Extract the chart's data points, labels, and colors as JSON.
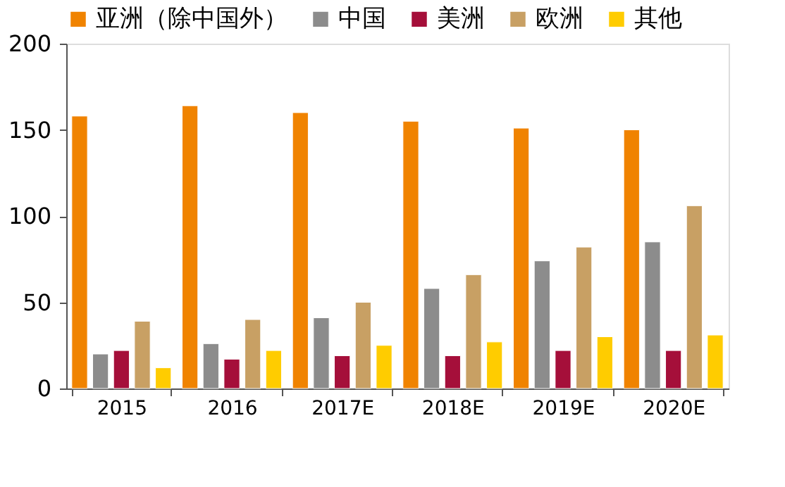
{
  "chart_data": {
    "type": "bar",
    "categories": [
      "2015",
      "2016",
      "2017E",
      "2018E",
      "2019E",
      "2020E"
    ],
    "series": [
      {
        "name": "亚洲（除中国外）",
        "color": "#f08300",
        "values": [
          158,
          164,
          160,
          155,
          151,
          150
        ]
      },
      {
        "name": "中国",
        "color": "#8c8c8c",
        "values": [
          20,
          26,
          41,
          58,
          74,
          85
        ]
      },
      {
        "name": "美洲",
        "color": "#a50f3a",
        "values": [
          22,
          17,
          19,
          19,
          22,
          22
        ]
      },
      {
        "name": "欧洲",
        "color": "#c8a064",
        "values": [
          39,
          40,
          50,
          66,
          82,
          106
        ]
      },
      {
        "name": "其他",
        "color": "#ffcc00",
        "values": [
          12,
          22,
          25,
          27,
          30,
          31
        ]
      }
    ],
    "ylim": [
      0,
      200
    ],
    "yticks": [
      0,
      50,
      100,
      150,
      200
    ],
    "grid": false,
    "legend": "top"
  }
}
